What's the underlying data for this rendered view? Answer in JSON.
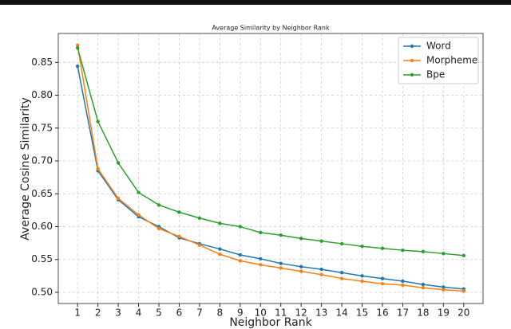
{
  "chart_data": {
    "type": "line",
    "title": "Average Similarity by Neighbor Rank",
    "xlabel": "Neighbor Rank",
    "ylabel": "Average Cosine Similarity",
    "x": [
      1,
      2,
      3,
      4,
      5,
      6,
      7,
      8,
      9,
      10,
      11,
      12,
      13,
      14,
      15,
      16,
      17,
      18,
      19,
      20
    ],
    "series": [
      {
        "name": "Word",
        "color": "#1f77b4",
        "values": [
          0.844,
          0.685,
          0.641,
          0.615,
          0.6,
          0.583,
          0.574,
          0.566,
          0.557,
          0.551,
          0.544,
          0.539,
          0.535,
          0.53,
          0.525,
          0.521,
          0.517,
          0.512,
          0.508,
          0.505
        ]
      },
      {
        "name": "Morpheme",
        "color": "#ff7f0e",
        "values": [
          0.876,
          0.688,
          0.643,
          0.618,
          0.597,
          0.585,
          0.572,
          0.558,
          0.548,
          0.542,
          0.537,
          0.532,
          0.527,
          0.521,
          0.517,
          0.513,
          0.511,
          0.507,
          0.504,
          0.502
        ]
      },
      {
        "name": "Bpe",
        "color": "#2ca02c",
        "values": [
          0.872,
          0.76,
          0.697,
          0.652,
          0.633,
          0.622,
          0.613,
          0.605,
          0.6,
          0.591,
          0.587,
          0.582,
          0.578,
          0.574,
          0.57,
          0.567,
          0.564,
          0.562,
          0.559,
          0.556
        ]
      }
    ],
    "xlim": [
      0.05,
      20.95
    ],
    "xticks": [
      1,
      2,
      3,
      4,
      5,
      6,
      7,
      8,
      9,
      10,
      11,
      12,
      13,
      14,
      15,
      16,
      17,
      18,
      19,
      20
    ],
    "ylim": [
      0.483,
      0.894
    ],
    "yticks": [
      {
        "value": 0.5,
        "label": "0.50"
      },
      {
        "value": 0.55,
        "label": "0.55"
      },
      {
        "value": 0.6,
        "label": "0.60"
      },
      {
        "value": 0.65,
        "label": "0.65"
      },
      {
        "value": 0.7,
        "label": "0.70"
      },
      {
        "value": 0.75,
        "label": "0.75"
      },
      {
        "value": 0.8,
        "label": "0.80"
      },
      {
        "value": 0.85,
        "label": "0.85"
      }
    ],
    "grid": true,
    "legend": "upper right"
  }
}
